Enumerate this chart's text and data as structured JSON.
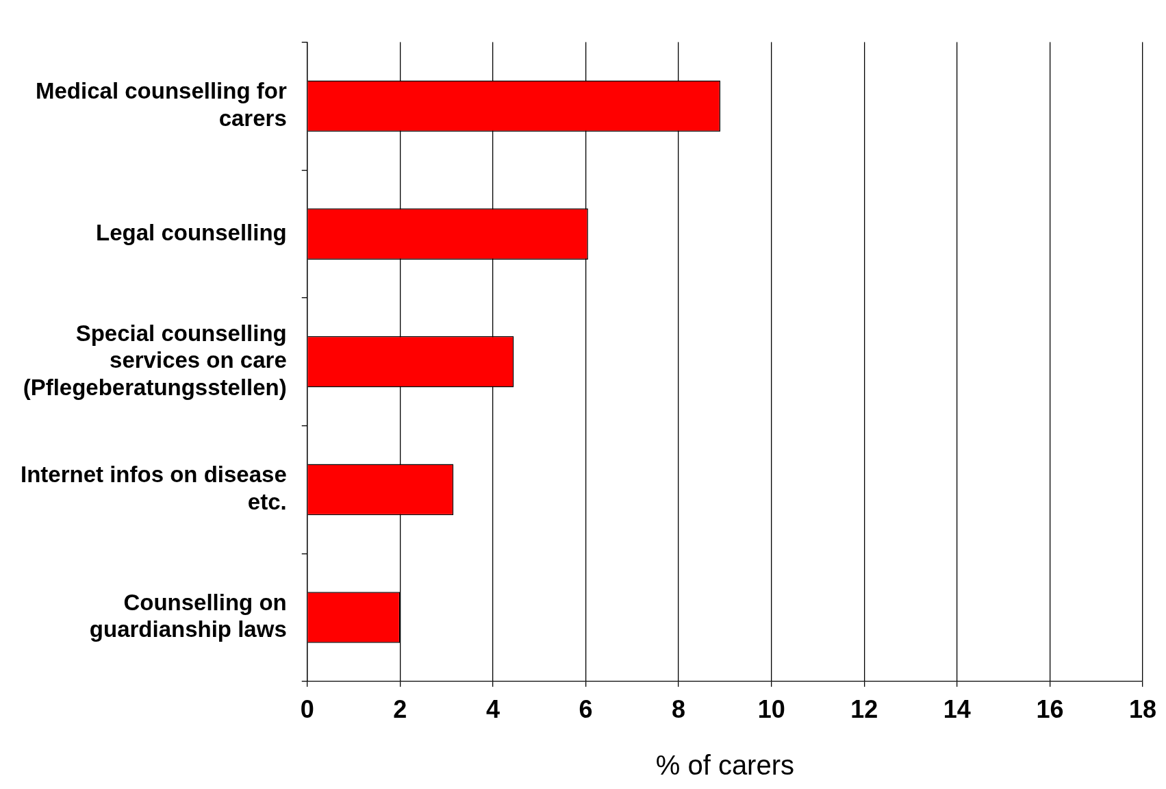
{
  "chart_data": {
    "type": "bar",
    "orientation": "horizontal",
    "xlabel": "% of carers",
    "categories": [
      "Medical counselling for carers",
      "Legal counselling",
      "Special counselling services on care (Pflegeberatungsstellen)",
      "Internet infos on disease etc.",
      "Counselling on guardianship laws"
    ],
    "values": [
      8.9,
      6.05,
      4.45,
      3.15,
      2.0
    ],
    "color": "#ff0000",
    "xlim": [
      0,
      18
    ],
    "xticks": [
      0,
      2,
      4,
      6,
      8,
      10,
      12,
      14,
      16,
      18
    ],
    "grid": "x",
    "legend": false
  }
}
